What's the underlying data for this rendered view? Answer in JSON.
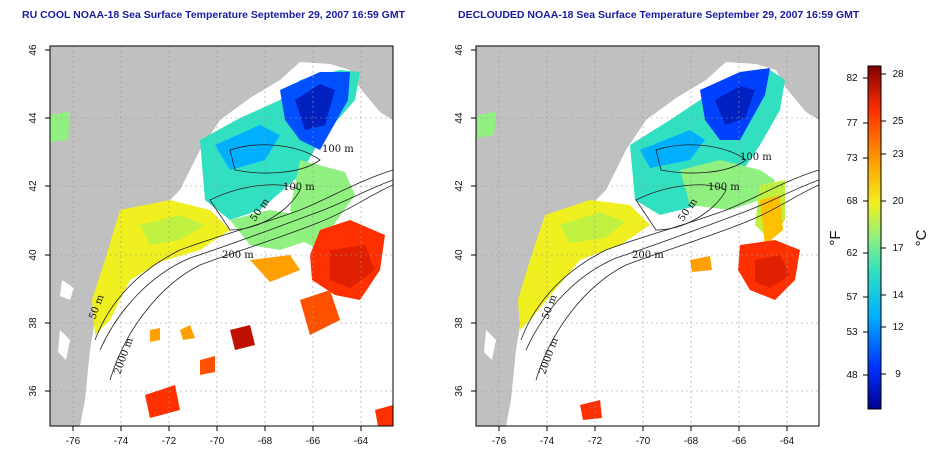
{
  "panels": [
    {
      "title": "RU COOL NOAA-18 Sea Surface Temperature September 29, 2007 16:59 GMT",
      "contour_labels": [
        "100 m",
        "50 m",
        "100 m",
        "200 m",
        "50 m",
        "2000 m"
      ]
    },
    {
      "title": "DECLOUDED NOAA-18 Sea Surface Temperature September 29, 2007 16:59 GMT",
      "contour_labels": [
        "100 m",
        "100 m",
        "50 m",
        "200 m",
        "50 m",
        "2000 m"
      ]
    }
  ],
  "axes": {
    "x_ticks": [
      "-76",
      "-74",
      "-72",
      "-70",
      "-68",
      "-66",
      "-64"
    ],
    "y_ticks": [
      "36",
      "38",
      "40",
      "42",
      "44",
      "46"
    ]
  },
  "colorbar": {
    "fahrenheit_label": "°F",
    "celsius_label": "°C",
    "fahrenheit_ticks": [
      "82",
      "77",
      "73",
      "68",
      "62",
      "57",
      "53",
      "48"
    ],
    "celsius_ticks": [
      "28",
      "25",
      "23",
      "20",
      "17",
      "14",
      "12",
      "9"
    ],
    "colors": [
      "#00008f",
      "#0030ff",
      "#00b0ff",
      "#30e0c0",
      "#90f080",
      "#f0f020",
      "#ffa000",
      "#ff3000",
      "#800000"
    ]
  },
  "colors": {
    "land": "#c0c0c0",
    "ocean_nodata": "#ffffff",
    "title": "#1a1aa0"
  }
}
